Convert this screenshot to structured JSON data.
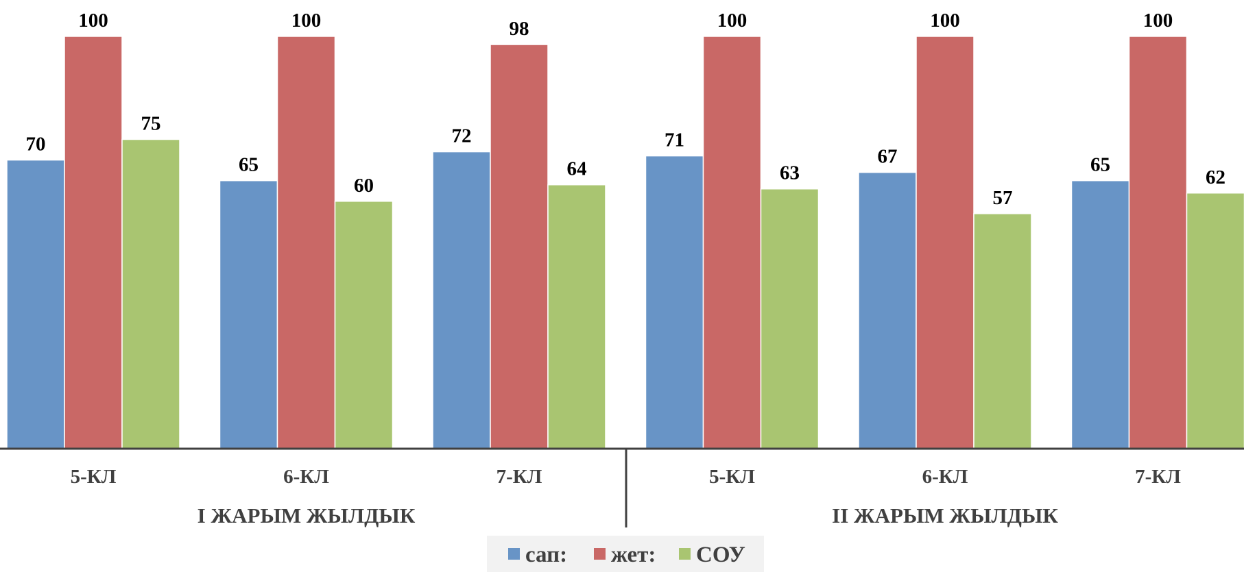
{
  "chart_data": {
    "type": "bar",
    "groups": [
      {
        "label": "I ЖАРЫМ ЖЫЛДЫК",
        "categories": [
          "5-КЛ",
          "6-КЛ",
          "7-КЛ"
        ]
      },
      {
        "label": "II ЖАРЫМ ЖЫЛДЫК",
        "categories": [
          "5-КЛ",
          "6-КЛ",
          "7-КЛ"
        ]
      }
    ],
    "categories": [
      "5-КЛ",
      "6-КЛ",
      "7-КЛ",
      "5-КЛ",
      "6-КЛ",
      "7-КЛ"
    ],
    "series": [
      {
        "name": "сап:",
        "color": "#6894C6",
        "values": [
          70,
          65,
          72,
          71,
          67,
          65
        ]
      },
      {
        "name": "жет:",
        "color": "#C96866",
        "values": [
          100,
          100,
          98,
          100,
          100,
          100
        ]
      },
      {
        "name": "СОУ",
        "color": "#A9C571",
        "values": [
          75,
          60,
          64,
          63,
          57,
          62
        ]
      }
    ],
    "ylim": [
      0,
      100
    ],
    "grid": false,
    "legend_position": "bottom"
  }
}
